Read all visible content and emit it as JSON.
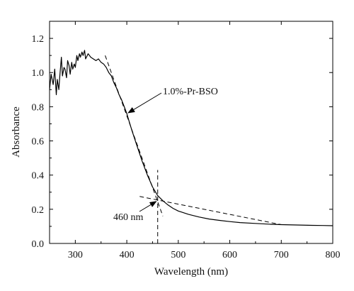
{
  "chart_data": {
    "type": "line",
    "xlabel": "Wavelength (nm)",
    "ylabel": "Absorbance",
    "xlim": [
      250,
      800
    ],
    "ylim": [
      0.0,
      1.3
    ],
    "xticks": [
      300,
      400,
      500,
      600,
      700,
      800
    ],
    "yticks": [
      0.0,
      0.2,
      0.4,
      0.6,
      0.8,
      1.0,
      1.2
    ],
    "grid": false,
    "series": [
      {
        "name": "1.0%-Pr-BSO",
        "color": "#000000",
        "x": [
          250,
          253,
          257,
          260,
          263,
          265,
          268,
          270,
          273,
          275,
          278,
          280,
          283,
          285,
          288,
          290,
          293,
          295,
          298,
          300,
          303,
          305,
          308,
          310,
          313,
          315,
          318,
          320,
          325,
          330,
          335,
          340,
          345,
          350,
          355,
          360,
          365,
          370,
          375,
          380,
          385,
          390,
          395,
          400,
          405,
          410,
          420,
          430,
          440,
          450,
          460,
          470,
          480,
          490,
          500,
          520,
          540,
          560,
          580,
          600,
          620,
          650,
          680,
          700,
          730,
          760,
          780,
          800
        ],
        "y": [
          0.9,
          0.99,
          0.93,
          1.02,
          0.87,
          0.96,
          0.9,
          0.98,
          1.09,
          0.98,
          1.03,
          1.02,
          0.97,
          1.07,
          1.04,
          0.99,
          1.06,
          1.02,
          1.05,
          1.03,
          1.1,
          1.07,
          1.11,
          1.09,
          1.12,
          1.1,
          1.13,
          1.08,
          1.11,
          1.09,
          1.08,
          1.07,
          1.08,
          1.06,
          1.05,
          1.03,
          1.0,
          0.98,
          0.94,
          0.91,
          0.87,
          0.84,
          0.8,
          0.76,
          0.71,
          0.66,
          0.57,
          0.48,
          0.4,
          0.33,
          0.28,
          0.25,
          0.225,
          0.205,
          0.19,
          0.17,
          0.155,
          0.143,
          0.135,
          0.128,
          0.122,
          0.117,
          0.112,
          0.11,
          0.108,
          0.106,
          0.105,
          0.104
        ]
      }
    ],
    "tangent_lines": [
      {
        "x": [
          358,
          470
        ],
        "y": [
          1.1,
          0.16
        ]
      },
      {
        "x": [
          425,
          700
        ],
        "y": [
          0.275,
          0.11
        ]
      }
    ],
    "vertical_line": {
      "x": 460,
      "y": [
        0.0,
        0.43
      ]
    },
    "annotations": [
      {
        "text": "1.0%-Pr-BSO",
        "arrow_to": [
          400,
          0.76
        ]
      },
      {
        "text": "460 nm",
        "arrow_to": [
          460,
          0.25
        ]
      }
    ]
  }
}
